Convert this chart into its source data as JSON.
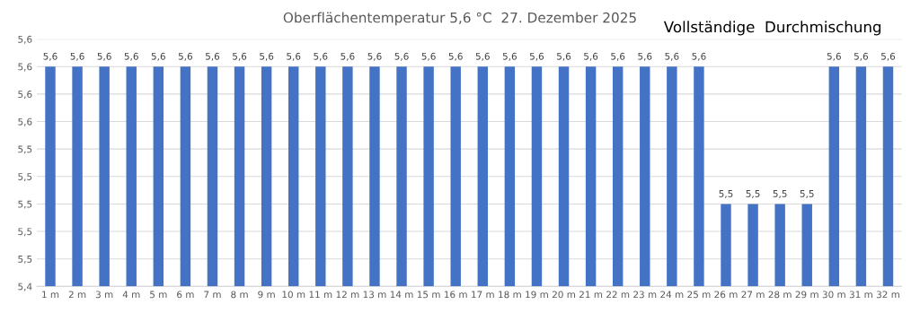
{
  "chart_data": {
    "type": "bar",
    "title": "Oberflächentemperatur 5,6 °C  27. Dezember 2025",
    "annotations": [
      "Vollständige  Durchmischung"
    ],
    "categories": [
      "1 m",
      "2 m",
      "3 m",
      "4 m",
      "5 m",
      "6 m",
      "7 m",
      "8 m",
      "9 m",
      "10 m",
      "11 m",
      "12 m",
      "13 m",
      "14 m",
      "15 m",
      "16 m",
      "17 m",
      "18 m",
      "19 m",
      "20 m",
      "21 m",
      "22 m",
      "23 m",
      "24 m",
      "25 m",
      "26 m",
      "27 m",
      "28 m",
      "29 m",
      "30 m",
      "31 m",
      "32 m"
    ],
    "values": [
      5.6,
      5.6,
      5.6,
      5.6,
      5.6,
      5.6,
      5.6,
      5.6,
      5.6,
      5.6,
      5.6,
      5.6,
      5.6,
      5.6,
      5.6,
      5.6,
      5.6,
      5.6,
      5.6,
      5.6,
      5.6,
      5.6,
      5.6,
      5.6,
      5.6,
      5.5,
      5.5,
      5.5,
      5.5,
      5.6,
      5.6,
      5.6
    ],
    "value_labels": [
      "5,6",
      "5,6",
      "5,6",
      "5,6",
      "5,6",
      "5,6",
      "5,6",
      "5,6",
      "5,6",
      "5,6",
      "5,6",
      "5,6",
      "5,6",
      "5,6",
      "5,6",
      "5,6",
      "5,6",
      "5,6",
      "5,6",
      "5,6",
      "5,6",
      "5,6",
      "5,6",
      "5,6",
      "5,6",
      "5,5",
      "5,5",
      "5,5",
      "5,5",
      "5,6",
      "5,6",
      "5,6"
    ],
    "color": "#4472c4",
    "ylim": [
      5.44,
      5.62
    ],
    "yticks": [
      {
        "value": 5.44,
        "label": "5,4"
      },
      {
        "value": 5.46,
        "label": "5,5"
      },
      {
        "value": 5.48,
        "label": "5,5"
      },
      {
        "value": 5.5,
        "label": "5,5"
      },
      {
        "value": 5.52,
        "label": "5,5"
      },
      {
        "value": 5.54,
        "label": "5,5"
      },
      {
        "value": 5.56,
        "label": "5,6"
      },
      {
        "value": 5.58,
        "label": "5,6"
      },
      {
        "value": 5.6,
        "label": "5,6"
      },
      {
        "value": 5.62,
        "label": "5,6"
      }
    ],
    "grid": "y",
    "legend": false
  }
}
